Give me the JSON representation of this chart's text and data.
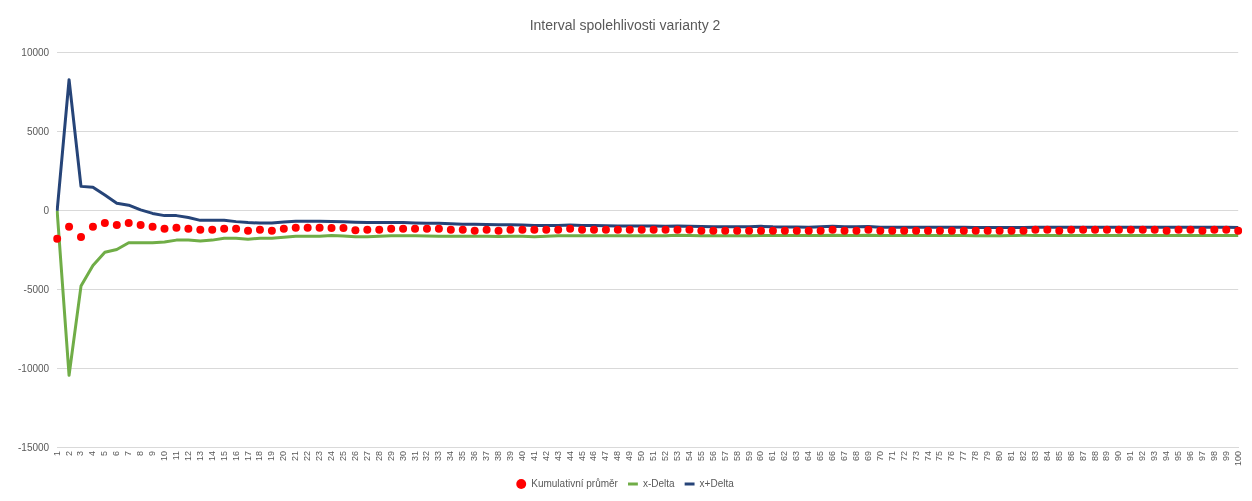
{
  "chart_data": {
    "type": "line",
    "title": "Interval spolehlivosti varianty 2",
    "categories": [
      "1",
      "2",
      "3",
      "4",
      "5",
      "6",
      "7",
      "8",
      "9",
      "10",
      "11",
      "12",
      "13",
      "14",
      "15",
      "16",
      "17",
      "18",
      "19",
      "20",
      "21",
      "22",
      "23",
      "24",
      "25",
      "26",
      "27",
      "28",
      "29",
      "30",
      "31",
      "32",
      "33",
      "34",
      "35",
      "36",
      "37",
      "38",
      "39",
      "40",
      "41",
      "42",
      "43",
      "44",
      "45",
      "46",
      "47",
      "48",
      "49",
      "50",
      "51",
      "52",
      "53",
      "54",
      "55",
      "56",
      "57",
      "58",
      "59",
      "60",
      "61",
      "62",
      "63",
      "64",
      "65",
      "66",
      "67",
      "68",
      "69",
      "70",
      "71",
      "72",
      "73",
      "74",
      "75",
      "76",
      "77",
      "78",
      "79",
      "80",
      "81",
      "82",
      "83",
      "84",
      "85",
      "86",
      "87",
      "88",
      "89",
      "90",
      "91",
      "92",
      "93",
      "94",
      "95",
      "96",
      "97",
      "98",
      "99",
      "100"
    ],
    "series": [
      {
        "name": "Kumulativní průměr",
        "type": "scatter",
        "marker": "circle",
        "color": "#ff0000",
        "values": [
          -1770,
          -1010,
          -1650,
          -1000,
          -770,
          -890,
          -770,
          -890,
          -1000,
          -1130,
          -1070,
          -1130,
          -1190,
          -1190,
          -1130,
          -1130,
          -1250,
          -1190,
          -1250,
          -1130,
          -1070,
          -1070,
          -1070,
          -1090,
          -1090,
          -1230,
          -1190,
          -1190,
          -1130,
          -1130,
          -1130,
          -1130,
          -1130,
          -1190,
          -1190,
          -1250,
          -1190,
          -1250,
          -1190,
          -1190,
          -1190,
          -1190,
          -1190,
          -1130,
          -1190,
          -1190,
          -1190,
          -1190,
          -1190,
          -1190,
          -1190,
          -1190,
          -1190,
          -1190,
          -1250,
          -1250,
          -1250,
          -1250,
          -1250,
          -1250,
          -1250,
          -1250,
          -1250,
          -1250,
          -1250,
          -1190,
          -1250,
          -1250,
          -1190,
          -1250,
          -1250,
          -1250,
          -1250,
          -1250,
          -1250,
          -1250,
          -1250,
          -1250,
          -1250,
          -1250,
          -1250,
          -1250,
          -1190,
          -1190,
          -1250,
          -1190,
          -1190,
          -1190,
          -1190,
          -1190,
          -1190,
          -1190,
          -1190,
          -1250,
          -1190,
          -1190,
          -1250,
          -1190,
          -1190,
          -1250
        ]
      },
      {
        "name": "x-Delta",
        "type": "line",
        "marker": "none",
        "color": "#70ad47",
        "values": [
          0,
          -10400,
          -4760,
          -3450,
          -2620,
          -2440,
          -2020,
          -2020,
          -2020,
          -1970,
          -1850,
          -1850,
          -1900,
          -1850,
          -1730,
          -1730,
          -1790,
          -1730,
          -1730,
          -1670,
          -1610,
          -1610,
          -1600,
          -1560,
          -1590,
          -1640,
          -1640,
          -1600,
          -1570,
          -1570,
          -1580,
          -1590,
          -1600,
          -1600,
          -1610,
          -1610,
          -1610,
          -1620,
          -1600,
          -1600,
          -1640,
          -1600,
          -1580,
          -1580,
          -1580,
          -1580,
          -1580,
          -1580,
          -1580,
          -1580,
          -1580,
          -1570,
          -1540,
          -1560,
          -1580,
          -1580,
          -1580,
          -1580,
          -1580,
          -1560,
          -1560,
          -1560,
          -1560,
          -1560,
          -1560,
          -1540,
          -1560,
          -1560,
          -1540,
          -1560,
          -1560,
          -1560,
          -1560,
          -1560,
          -1560,
          -1560,
          -1560,
          -1580,
          -1580,
          -1580,
          -1560,
          -1550,
          -1550,
          -1550,
          -1550,
          -1550,
          -1550,
          -1550,
          -1550,
          -1550,
          -1550,
          -1550,
          -1550,
          -1550,
          -1550,
          -1550,
          -1550,
          -1550,
          -1550,
          -1550
        ]
      },
      {
        "name": "x+Delta",
        "type": "line",
        "marker": "none",
        "color": "#264478",
        "values": [
          0,
          8300,
          1550,
          1500,
          1000,
          480,
          360,
          60,
          -160,
          -300,
          -300,
          -420,
          -600,
          -600,
          -600,
          -680,
          -740,
          -770,
          -770,
          -710,
          -650,
          -650,
          -660,
          -680,
          -690,
          -720,
          -740,
          -740,
          -730,
          -730,
          -760,
          -780,
          -790,
          -820,
          -840,
          -850,
          -860,
          -880,
          -880,
          -900,
          -920,
          -920,
          -920,
          -900,
          -920,
          -930,
          -940,
          -950,
          -950,
          -960,
          -960,
          -970,
          -960,
          -980,
          -990,
          -1000,
          -1000,
          -1000,
          -1000,
          -980,
          -1010,
          -1020,
          -1020,
          -1030,
          -1010,
          -980,
          -1010,
          -1010,
          -990,
          -1030,
          -1030,
          -1040,
          -1040,
          -1040,
          -1040,
          -1040,
          -1030,
          -1050,
          -1050,
          -1050,
          -1050,
          -1050,
          -1040,
          -1040,
          -1040,
          -1040,
          -1040,
          -1040,
          -1040,
          -1040,
          -1040,
          -1040,
          -1040,
          -1040,
          -1040,
          -1040,
          -1040,
          -1040,
          -1040,
          -1050
        ]
      }
    ],
    "ylim": [
      -15000,
      10000
    ],
    "yticks": [
      -15000,
      -10000,
      -5000,
      0,
      5000,
      10000
    ],
    "grid": "y",
    "legend": "bottom"
  }
}
